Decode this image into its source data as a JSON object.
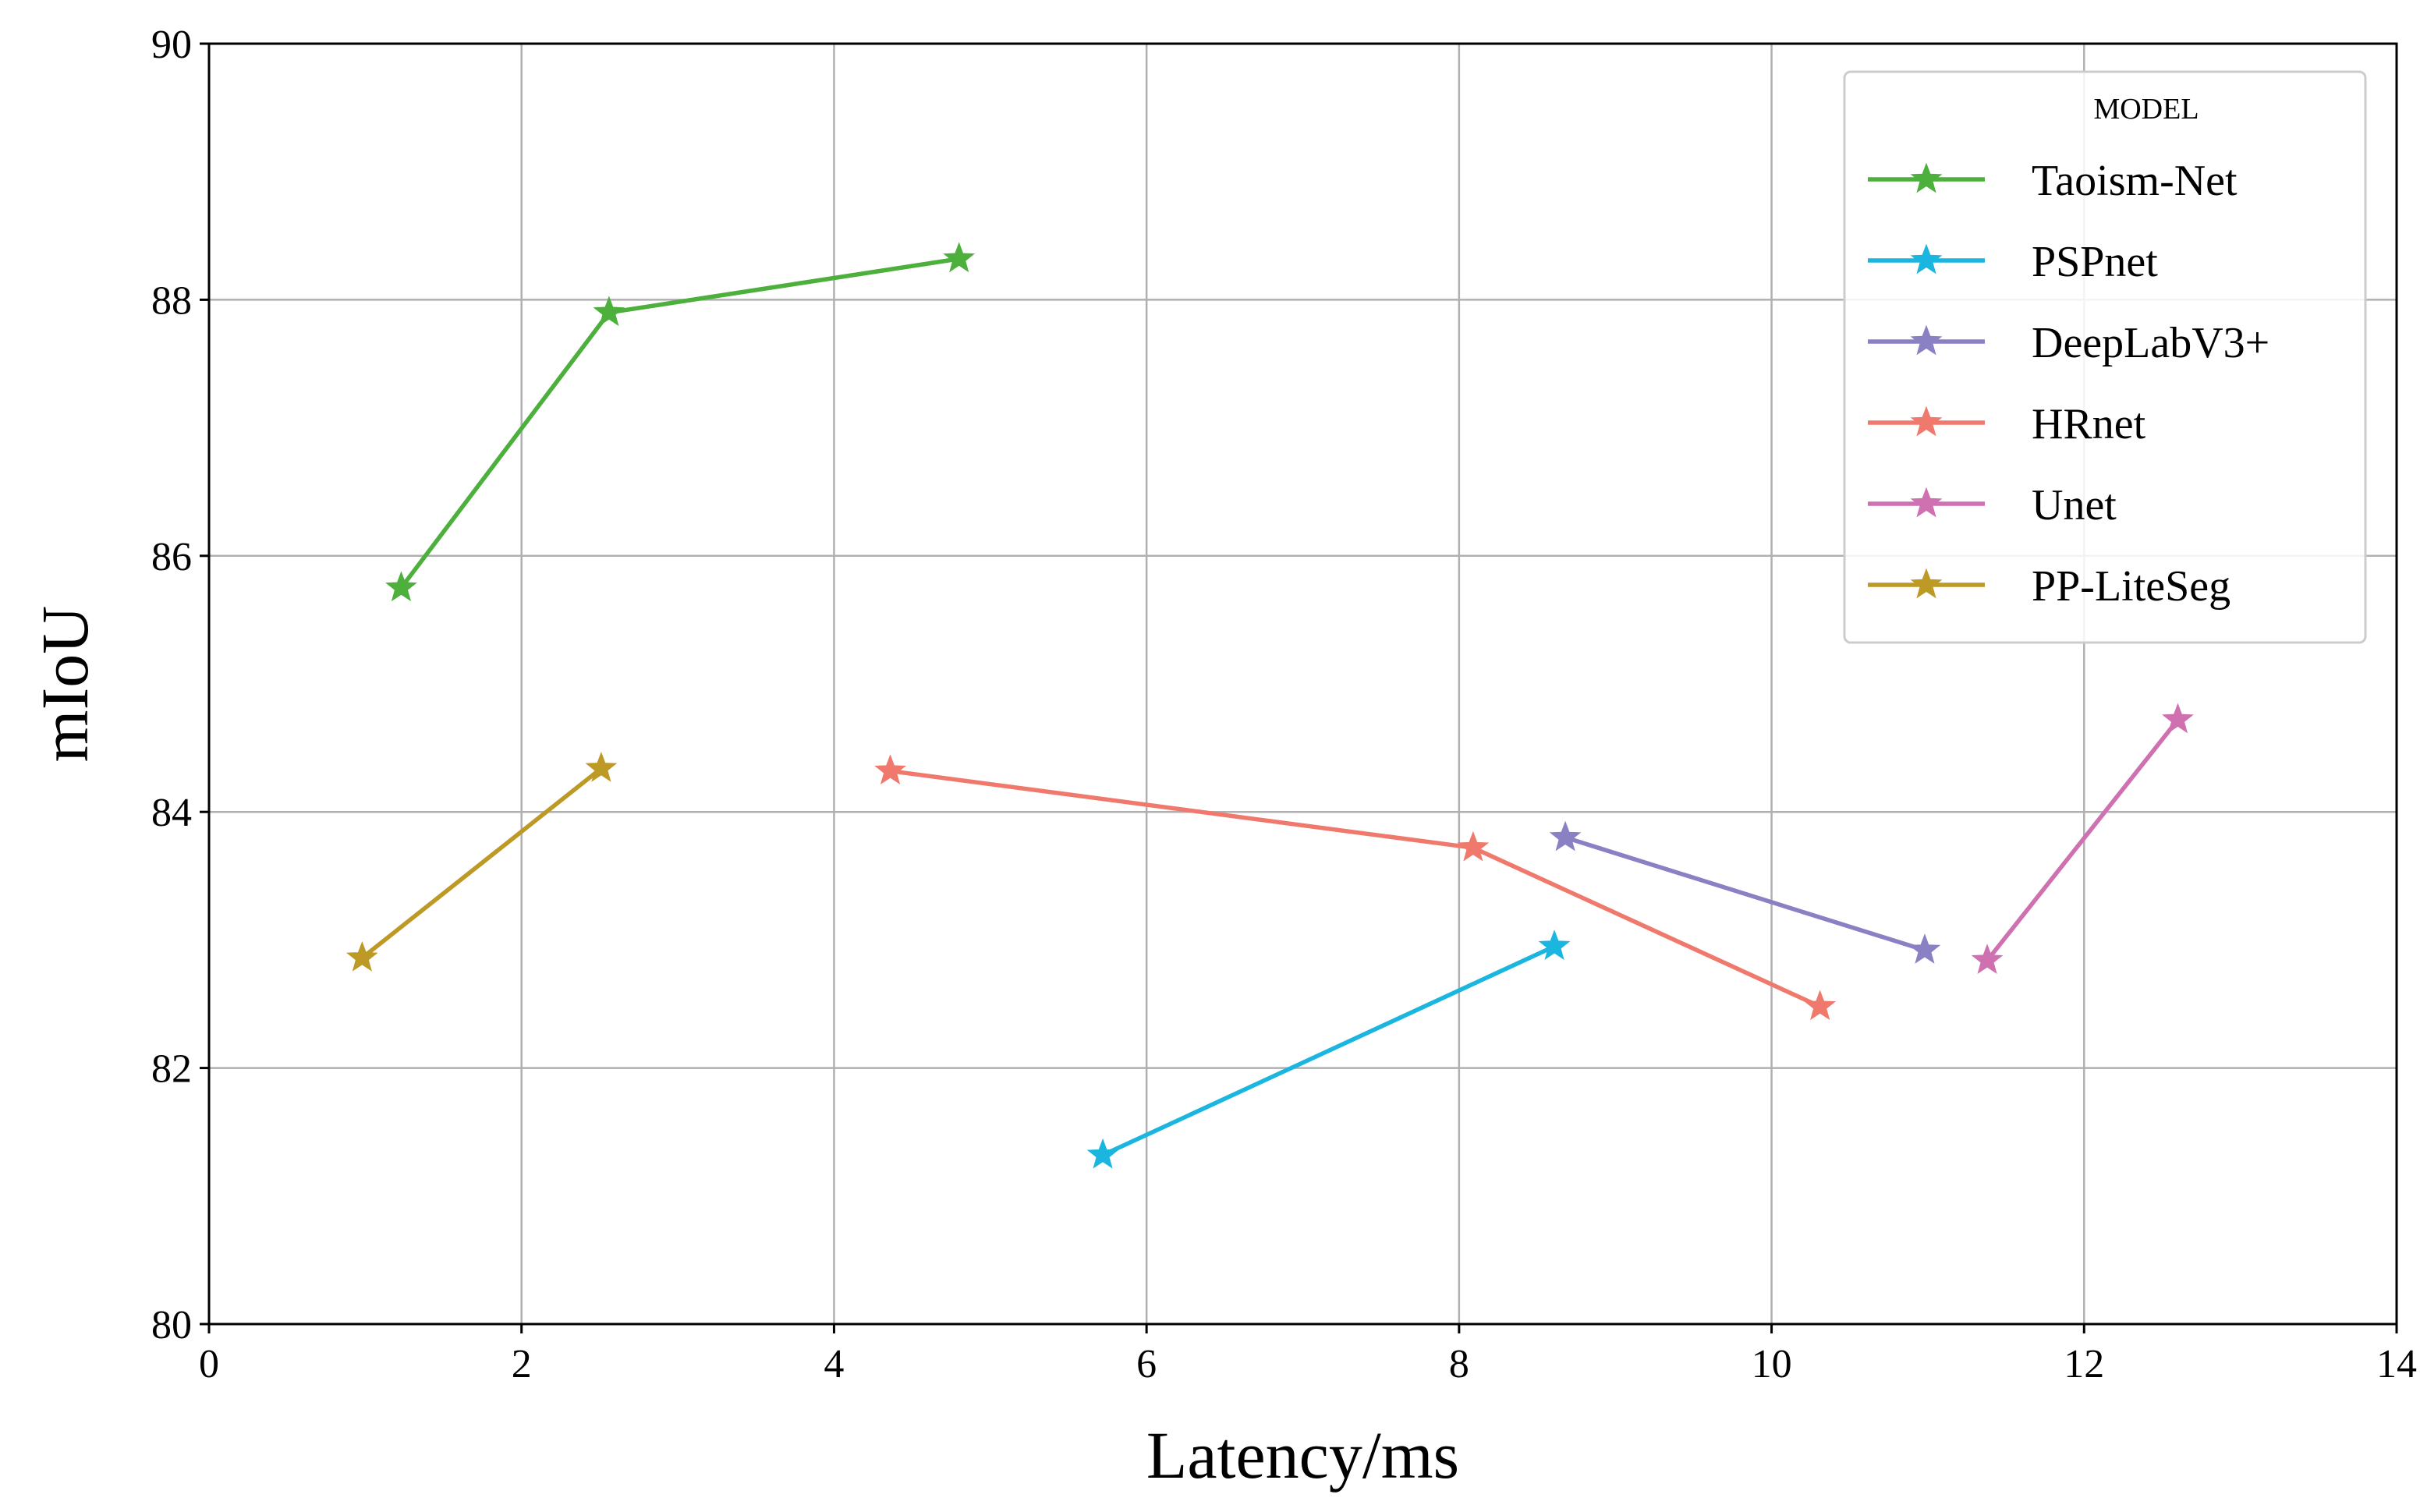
{
  "chart_data": {
    "type": "line",
    "xlabel": "Latency/ms",
    "ylabel": "mIoU",
    "xlim": [
      0,
      14
    ],
    "ylim": [
      80,
      90
    ],
    "xticks": [
      0,
      2,
      4,
      6,
      8,
      10,
      12,
      14
    ],
    "yticks": [
      80,
      82,
      84,
      86,
      88,
      90
    ],
    "xtick_labels": [
      "0",
      "2",
      "4",
      "6",
      "8",
      "10",
      "12",
      "14"
    ],
    "ytick_labels": [
      "80",
      "82",
      "84",
      "86",
      "88",
      "90"
    ],
    "grid": true,
    "marker": "star",
    "legend": {
      "title": "MODEL",
      "placement": "top-right"
    },
    "series": [
      {
        "name": "Taoism-Net",
        "color": "#4daf3c",
        "x": [
          1.23,
          2.56,
          4.8
        ],
        "y": [
          85.75,
          87.9,
          88.32
        ]
      },
      {
        "name": "PSPnet",
        "color": "#1ab6e0",
        "x": [
          5.72,
          8.61
        ],
        "y": [
          81.32,
          82.95
        ]
      },
      {
        "name": "DeepLabV3+",
        "color": "#8a80c4",
        "x": [
          8.68,
          10.98
        ],
        "y": [
          83.8,
          82.92
        ]
      },
      {
        "name": "HRnet",
        "color": "#f0796d",
        "x": [
          4.36,
          8.09,
          10.31
        ],
        "y": [
          84.32,
          83.72,
          82.48
        ]
      },
      {
        "name": "Unet",
        "color": "#cf70b0",
        "x": [
          11.38,
          12.6
        ],
        "y": [
          82.84,
          84.72
        ]
      },
      {
        "name": "PP-LiteSeg",
        "color": "#bd9a26",
        "x": [
          0.98,
          2.51
        ],
        "y": [
          82.86,
          84.34
        ]
      }
    ]
  }
}
